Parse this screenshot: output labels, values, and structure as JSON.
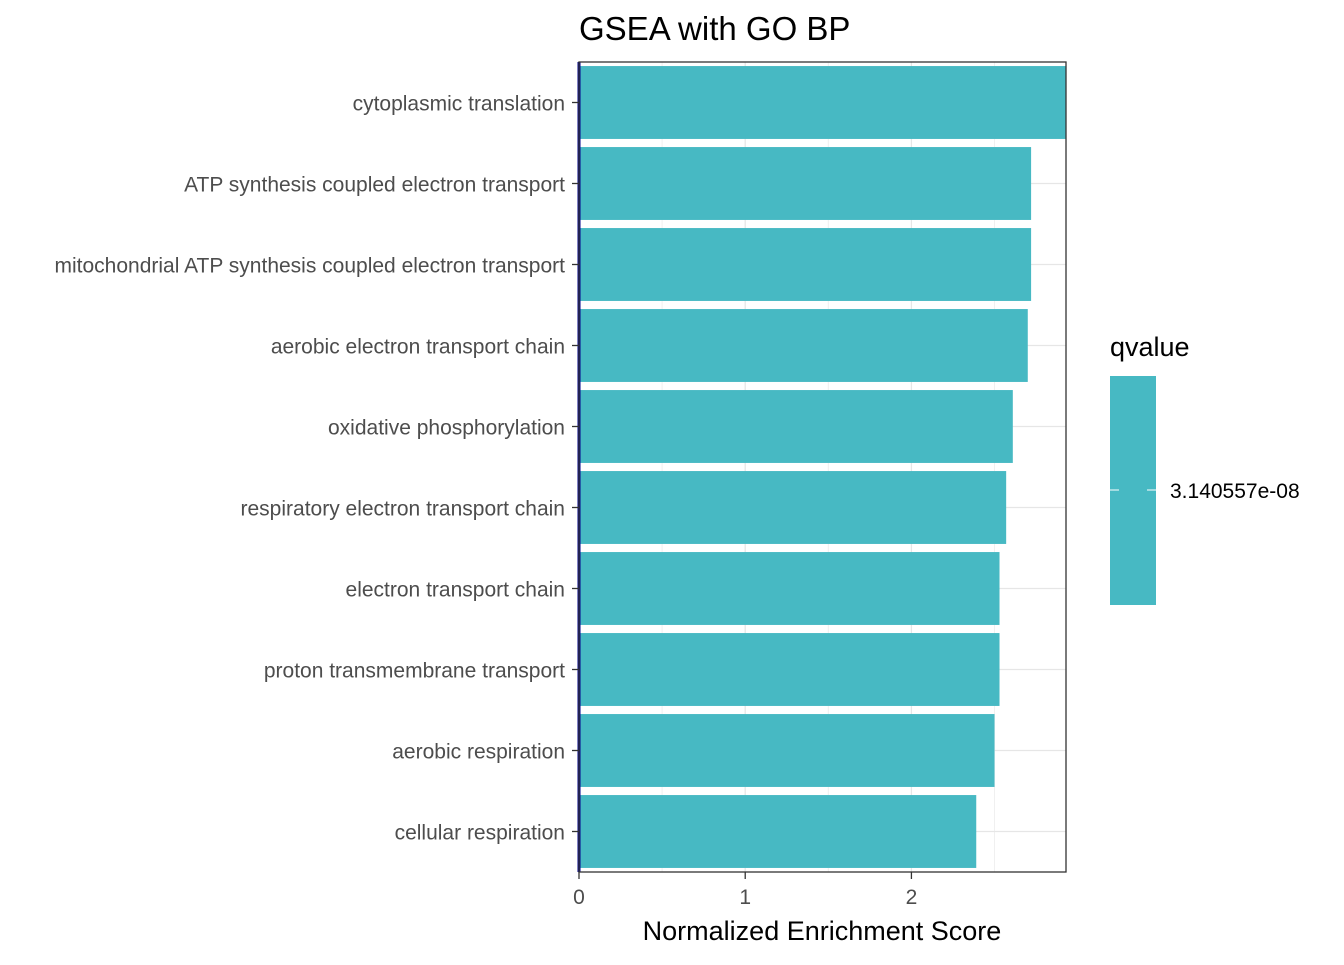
{
  "chart_data": {
    "type": "bar",
    "orientation": "horizontal",
    "title": "GSEA with GO BP",
    "xlabel": "Normalized Enrichment Score",
    "ylabel": "",
    "xlim": [
      0,
      2.93
    ],
    "xticks": [
      0,
      1,
      2
    ],
    "grid": true,
    "categories": [
      "cytoplasmic translation",
      "ATP synthesis coupled electron transport",
      "mitochondrial ATP synthesis coupled electron transport",
      "aerobic electron transport chain",
      "oxidative phosphorylation",
      "respiratory electron transport chain",
      "electron transport chain",
      "proton transmembrane transport",
      "aerobic respiration",
      "cellular respiration"
    ],
    "values": [
      2.93,
      2.72,
      2.72,
      2.7,
      2.61,
      2.57,
      2.53,
      2.53,
      2.5,
      2.39
    ],
    "bar_color": "#47B9C3",
    "zero_line_color": "#00008B",
    "legend": {
      "title": "qvalue",
      "position": "right",
      "label": "3.140557e-08",
      "color": "#47B9C3"
    }
  }
}
